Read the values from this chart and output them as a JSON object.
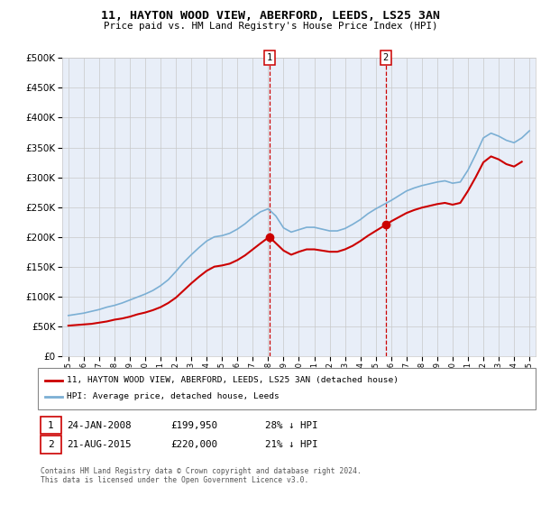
{
  "title": "11, HAYTON WOOD VIEW, ABERFORD, LEEDS, LS25 3AN",
  "subtitle": "Price paid vs. HM Land Registry's House Price Index (HPI)",
  "footer": "Contains HM Land Registry data © Crown copyright and database right 2024.\nThis data is licensed under the Open Government Licence v3.0.",
  "legend_line1": "11, HAYTON WOOD VIEW, ABERFORD, LEEDS, LS25 3AN (detached house)",
  "legend_line2": "HPI: Average price, detached house, Leeds",
  "sale1_label": "1",
  "sale1_date": "24-JAN-2008",
  "sale1_price": "£199,950",
  "sale1_hpi": "28% ↓ HPI",
  "sale1_year": 2008.07,
  "sale1_value": 199950,
  "sale2_label": "2",
  "sale2_date": "21-AUG-2015",
  "sale2_price": "£220,000",
  "sale2_hpi": "21% ↓ HPI",
  "sale2_year": 2015.64,
  "sale2_value": 220000,
  "red_color": "#cc0000",
  "blue_color": "#7bafd4",
  "bg_color": "#e8eef8",
  "grid_color": "#c8c8c8",
  "ylim": [
    0,
    500000
  ],
  "yticks": [
    0,
    50000,
    100000,
    150000,
    200000,
    250000,
    300000,
    350000,
    400000,
    450000,
    500000
  ],
  "hpi_data": {
    "years": [
      1995.0,
      1995.5,
      1996.0,
      1996.5,
      1997.0,
      1997.5,
      1998.0,
      1998.5,
      1999.0,
      1999.5,
      2000.0,
      2000.5,
      2001.0,
      2001.5,
      2002.0,
      2002.5,
      2003.0,
      2003.5,
      2004.0,
      2004.5,
      2005.0,
      2005.5,
      2006.0,
      2006.5,
      2007.0,
      2007.5,
      2008.0,
      2008.5,
      2009.0,
      2009.5,
      2010.0,
      2010.5,
      2011.0,
      2011.5,
      2012.0,
      2012.5,
      2013.0,
      2013.5,
      2014.0,
      2014.5,
      2015.0,
      2015.5,
      2016.0,
      2016.5,
      2017.0,
      2017.5,
      2018.0,
      2018.5,
      2019.0,
      2019.5,
      2020.0,
      2020.5,
      2021.0,
      2021.5,
      2022.0,
      2022.5,
      2023.0,
      2023.5,
      2024.0,
      2024.5,
      2025.0
    ],
    "values": [
      68000,
      70000,
      72000,
      75000,
      78000,
      82000,
      85000,
      89000,
      94000,
      99000,
      104000,
      110000,
      118000,
      128000,
      142000,
      157000,
      170000,
      182000,
      193000,
      200000,
      202000,
      206000,
      213000,
      222000,
      233000,
      242000,
      247000,
      235000,
      215000,
      208000,
      212000,
      216000,
      216000,
      213000,
      210000,
      210000,
      214000,
      221000,
      229000,
      239000,
      247000,
      254000,
      261000,
      269000,
      277000,
      282000,
      286000,
      289000,
      292000,
      294000,
      290000,
      292000,
      312000,
      338000,
      366000,
      374000,
      369000,
      362000,
      358000,
      366000,
      378000
    ]
  },
  "property_data": {
    "years": [
      1995.0,
      1995.5,
      1996.0,
      1996.5,
      1997.0,
      1997.5,
      1998.0,
      1998.5,
      1999.0,
      1999.5,
      2000.0,
      2000.5,
      2001.0,
      2001.5,
      2002.0,
      2002.5,
      2003.0,
      2003.5,
      2004.0,
      2004.5,
      2005.0,
      2005.5,
      2006.0,
      2006.5,
      2007.0,
      2007.5,
      2008.07,
      2009.0,
      2009.5,
      2010.0,
      2010.5,
      2011.0,
      2011.5,
      2012.0,
      2012.5,
      2013.0,
      2013.5,
      2014.0,
      2014.5,
      2015.0,
      2015.64,
      2016.0,
      2016.5,
      2017.0,
      2017.5,
      2018.0,
      2018.5,
      2019.0,
      2019.5,
      2020.0,
      2020.5,
      2021.0,
      2021.5,
      2022.0,
      2022.5,
      2023.0,
      2023.5,
      2024.0,
      2024.5
    ],
    "values": [
      51000,
      52000,
      53000,
      54000,
      56000,
      58000,
      61000,
      63000,
      66000,
      70000,
      73000,
      77000,
      82000,
      89000,
      98000,
      110000,
      122000,
      133000,
      143000,
      150000,
      152000,
      155000,
      161000,
      169000,
      179000,
      189000,
      199950,
      177000,
      170000,
      175000,
      179000,
      179000,
      177000,
      175000,
      175000,
      179000,
      185000,
      193000,
      202000,
      210000,
      220000,
      226000,
      233000,
      240000,
      245000,
      249000,
      252000,
      255000,
      257000,
      254000,
      257000,
      277000,
      300000,
      325000,
      335000,
      330000,
      322000,
      318000,
      326000
    ]
  }
}
